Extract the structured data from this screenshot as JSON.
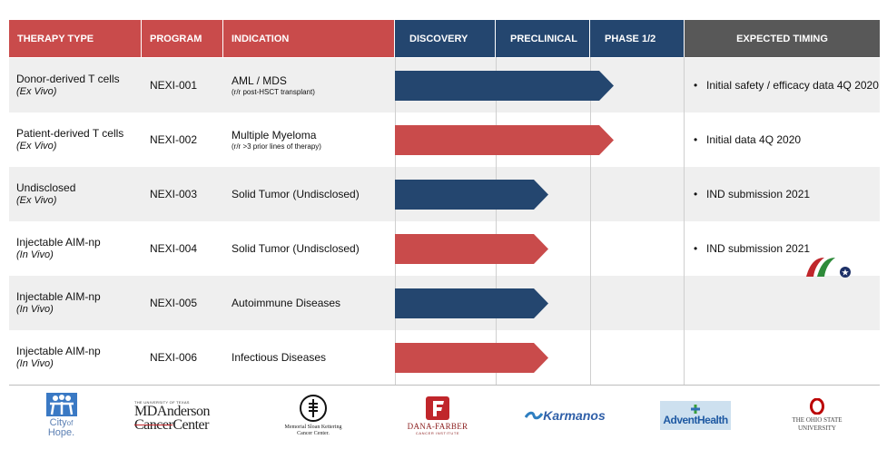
{
  "colors": {
    "red": "#c94b4b",
    "navy": "#24466f",
    "gray_header": "#585858",
    "row_shade": "#efefef"
  },
  "headers": {
    "therapy_type": "THERAPY TYPE",
    "program": "PROGRAM",
    "indication": "INDICATION",
    "discovery": "DISCOVERY",
    "preclinical": "PRECLINICAL",
    "phase": "PHASE 1/2",
    "timing": "EXPECTED TIMING"
  },
  "rows": [
    {
      "therapy": "Donor-derived T cells",
      "mode": "(Ex Vivo)",
      "program": "NEXI-001",
      "indication": "AML / MDS",
      "note": "(r/r post-HSCT transplant)",
      "timing": [
        "Initial safety / efficacy data 4Q 2020"
      ],
      "stage": "Phase 1/2",
      "color": "navy"
    },
    {
      "therapy": "Patient-derived T cells",
      "mode": "(Ex Vivo)",
      "program": "NEXI-002",
      "indication": "Multiple Myeloma",
      "note": "(r/r >3 prior lines of therapy)",
      "timing": [
        "Initial data 4Q 2020"
      ],
      "stage": "Phase 1/2",
      "color": "red"
    },
    {
      "therapy": "Undisclosed",
      "mode": "(Ex Vivo)",
      "program": "NEXI-003",
      "indication": "Solid Tumor (Undisclosed)",
      "note": "",
      "timing": [
        "IND submission 2021"
      ],
      "stage": "Preclinical",
      "color": "navy"
    },
    {
      "therapy": "Injectable AIM-np",
      "mode": "(In Vivo)",
      "program": "NEXI-004",
      "indication": "Solid Tumor (Undisclosed)",
      "note": "",
      "timing": [
        "IND submission 2021"
      ],
      "stage": "Preclinical",
      "color": "red"
    },
    {
      "therapy": "Injectable AIM-np",
      "mode": "(In Vivo)",
      "program": "NEXI-005",
      "indication": "Autoimmune Diseases",
      "note": "",
      "timing": [],
      "stage": "Preclinical",
      "color": "navy"
    },
    {
      "therapy": "Injectable AIM-np",
      "mode": "(In Vivo)",
      "program": "NEXI-006",
      "indication": "Infectious Diseases",
      "note": "",
      "timing": [],
      "stage": "Preclinical",
      "color": "red"
    }
  ],
  "partners": {
    "city_of_hope": {
      "line1": "City",
      "line2": "of",
      "line3": "Hope."
    },
    "md_anderson": {
      "top": "THE UNIVERSITY OF TEXAS",
      "name": "MDAnderson",
      "sub_strike": "Cancer",
      "sub": "Center"
    },
    "msk": {
      "line1": "Memorial Sloan Kettering",
      "line2": "Cancer Center."
    },
    "dana_farber": {
      "name": "DANA-FARBER",
      "sub": "CANCER INSTITUTE"
    },
    "karmanos": {
      "name": "Karmanos"
    },
    "advent": {
      "name": "AdventHealth"
    },
    "ohio_state": {
      "line1": "THE OHIO STATE",
      "line2": "UNIVERSITY"
    }
  }
}
